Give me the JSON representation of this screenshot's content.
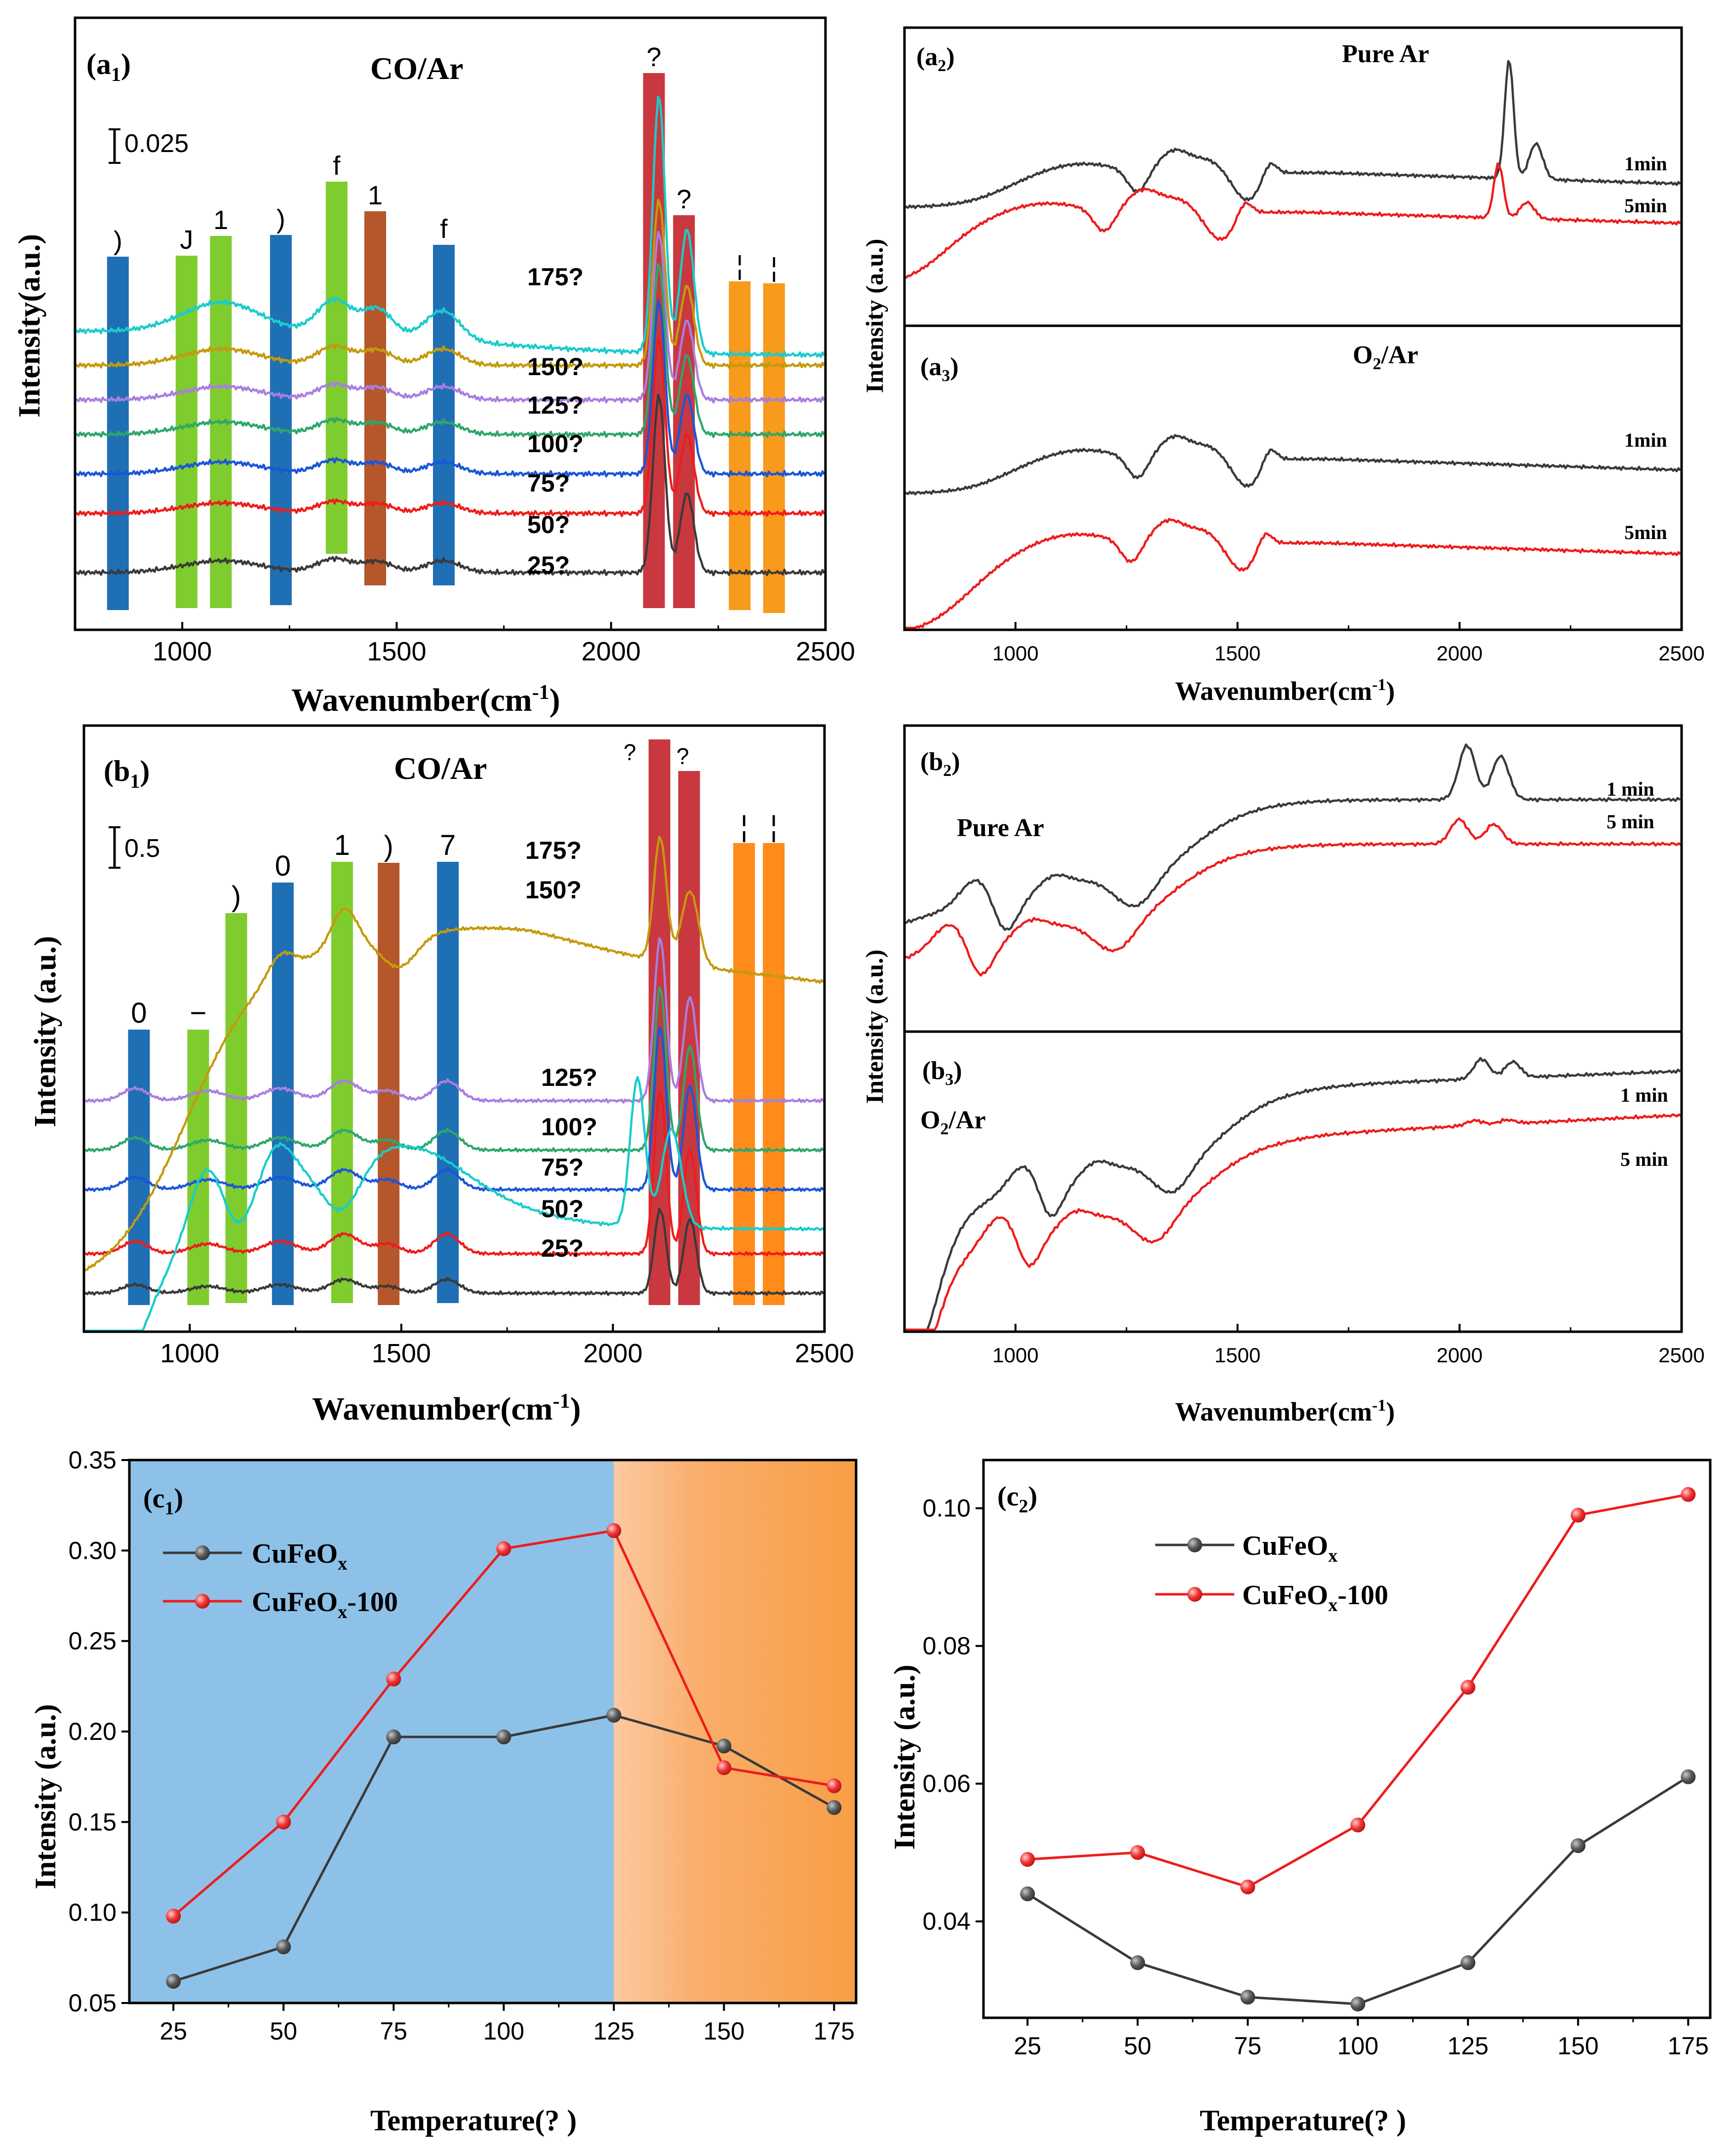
{
  "figure": {
    "a1": {
      "panel_label": "(a",
      "panel_sub": "1",
      "title": "CO/Ar",
      "scale_bar": "0.025",
      "xlabel": "Wavenumber(cm",
      "xlabel_sup": "-1",
      "xlabel_close": ")",
      "ylabel": "Intensity(a.u.)",
      "xticks": [
        "1000",
        "1500",
        "2000",
        "2500"
      ],
      "curve_labels": [
        "175?",
        "150?",
        "125?",
        "100?",
        "75?",
        "50?",
        "25?"
      ],
      "band_marks": [
        ")",
        "J",
        "1",
        ")",
        "f",
        "1",
        "f",
        "?",
        "?",
        "¦",
        "¦"
      ]
    },
    "a2": {
      "panel_label": "(a",
      "panel_sub": "2",
      "title": "Pure Ar",
      "labels": [
        "1min",
        "5min"
      ]
    },
    "a3": {
      "panel_label": "(a",
      "panel_sub": "3",
      "title_a": "O",
      "title_sub": "2",
      "title_b": "/Ar",
      "labels": [
        "1min",
        "5min"
      ]
    },
    "a_right": {
      "ylabel": "Intensity (a.u.)",
      "xlabel": "Wavenumber(cm",
      "xlabel_sup": "-1",
      "xlabel_close": ")",
      "xticks": [
        "1000",
        "1500",
        "2000",
        "2500"
      ]
    },
    "b1": {
      "panel_label": "(b",
      "panel_sub": "1",
      "title": "CO/Ar",
      "scale_bar": "0.5",
      "xlabel": "Wavenumber(cm",
      "xlabel_sup": "-1",
      "xlabel_close": ")",
      "ylabel": "Intensity (a.u.)",
      "xticks": [
        "1000",
        "1500",
        "2000",
        "2500"
      ],
      "curve_labels": [
        "175?",
        "150?",
        "125?",
        "100?",
        "75?",
        "50?",
        "25?"
      ],
      "band_marks": [
        "0",
        "−",
        ")",
        "0",
        "1",
        ")",
        "7",
        "?",
        "?",
        "¦",
        "¦"
      ]
    },
    "b2": {
      "panel_label": "(b",
      "panel_sub": "2",
      "title": "Pure Ar",
      "labels": [
        "1 min",
        "5 min"
      ]
    },
    "b3": {
      "panel_label": "(b",
      "panel_sub": "3",
      "title_a": "O",
      "title_sub": "2",
      "title_b": "/Ar",
      "labels": [
        "1 min",
        "5 min"
      ]
    },
    "b_right": {
      "ylabel": "Intensity (a.u.)",
      "xlabel": "Wavenumber(cm",
      "xlabel_sup": "-1",
      "xlabel_close": ")",
      "xticks": [
        "1000",
        "1500",
        "2000",
        "2500"
      ]
    },
    "c1": {
      "panel_label": "(c",
      "panel_sub": "1",
      "xlabel": "Temperature(?  )",
      "ylabel": "Intensity (a.u.)",
      "legend_prefix": "CuFeO",
      "legend_sub": "x",
      "legend_suffix_2": "-100"
    },
    "c2": {
      "panel_label": "(c",
      "panel_sub": "2",
      "xlabel": "Temperature(?  )",
      "ylabel": "Intensity (a.u.)",
      "legend_prefix": "CuFeO",
      "legend_sub": "x",
      "legend_suffix_2": "-100"
    }
  },
  "colors": {
    "black": "#3a3a3a",
    "red": "#ee1c1c",
    "cyan": "#19cccc",
    "gold": "#c49a0c",
    "purple": "#a97ee0",
    "green": "#2fa66b",
    "blue": "#1a56d8",
    "band_blue": "#1f6fb5",
    "band_green": "#7fcc2e",
    "band_brown": "#b5572a",
    "band_red": "#c9383e",
    "band_orange": "#f89a1c",
    "band_orange2": "#ff8c1a",
    "bg_blue": "#8dc1e8",
    "bg_orange": "#f9a24a"
  },
  "chart_data": [
    {
      "id": "a1",
      "type": "line",
      "title": "CO/Ar",
      "xlabel": "Wavenumber(cm-1)",
      "ylabel": "Intensity(a.u.)",
      "xlim": [
        750,
        2500
      ],
      "series": [
        "175?",
        "150?",
        "125?",
        "100?",
        "75?",
        "50?",
        "25?"
      ],
      "band_positions": [
        850,
        1010,
        1090,
        1230,
        1360,
        1450,
        1610,
        2100,
        2170,
        2300,
        2380
      ]
    },
    {
      "id": "a2",
      "type": "line",
      "title": "Pure Ar",
      "xlabel": "Wavenumber(cm-1)",
      "ylabel": "Intensity (a.u.)",
      "xlim": [
        750,
        2500
      ],
      "series": [
        "1min",
        "5min"
      ]
    },
    {
      "id": "a3",
      "type": "line",
      "title": "O2/Ar",
      "xlabel": "Wavenumber(cm-1)",
      "ylabel": "Intensity (a.u.)",
      "xlim": [
        750,
        2500
      ],
      "series": [
        "1min",
        "5min"
      ]
    },
    {
      "id": "b1",
      "type": "line",
      "title": "CO/Ar",
      "xlabel": "Wavenumber(cm-1)",
      "ylabel": "Intensity (a.u.)",
      "xlim": [
        750,
        2500
      ],
      "series": [
        "175?",
        "150?",
        "125?",
        "100?",
        "75?",
        "50?",
        "25?"
      ],
      "band_positions": [
        880,
        1020,
        1110,
        1220,
        1360,
        1470,
        1610,
        2110,
        2180,
        2310,
        2380
      ]
    },
    {
      "id": "b2",
      "type": "line",
      "title": "Pure Ar",
      "xlabel": "Wavenumber(cm-1)",
      "ylabel": "Intensity (a.u.)",
      "xlim": [
        750,
        2500
      ],
      "series": [
        "1 min",
        "5 min"
      ]
    },
    {
      "id": "b3",
      "type": "line",
      "title": "O2/Ar",
      "xlabel": "Wavenumber(cm-1)",
      "ylabel": "Intensity (a.u.)",
      "xlim": [
        750,
        2500
      ],
      "series": [
        "1 min",
        "5 min"
      ]
    },
    {
      "id": "c1",
      "type": "line",
      "xlabel": "Temperature(?  )",
      "ylabel": "Intensity (a.u.)",
      "x": [
        25,
        50,
        75,
        100,
        125,
        150,
        175
      ],
      "xlim": [
        15,
        180
      ],
      "ylim": [
        0.05,
        0.35
      ],
      "xticks": [
        25,
        50,
        75,
        100,
        125,
        150,
        175
      ],
      "yticks": [
        0.05,
        0.1,
        0.15,
        0.2,
        0.25,
        0.3,
        0.35
      ],
      "ytick_labels": [
        "0.05",
        "0.10",
        "0.15",
        "0.20",
        "0.25",
        "0.30",
        "0.35"
      ],
      "background_split": 125,
      "series": [
        {
          "name": "CuFeOx",
          "values": [
            0.062,
            0.081,
            0.197,
            0.197,
            0.209,
            0.192,
            0.158
          ]
        },
        {
          "name": "CuFeOx-100",
          "values": [
            0.098,
            0.15,
            0.229,
            0.301,
            0.311,
            0.18,
            0.17
          ]
        }
      ]
    },
    {
      "id": "c2",
      "type": "line",
      "xlabel": "Temperature(?  )",
      "ylabel": "Intensity (a.u.)",
      "x": [
        25,
        50,
        75,
        100,
        125,
        150,
        175
      ],
      "xlim": [
        15,
        180
      ],
      "ylim": [
        0.026,
        0.107
      ],
      "xticks": [
        25,
        50,
        75,
        100,
        125,
        150,
        175
      ],
      "yticks": [
        0.04,
        0.06,
        0.08,
        0.1
      ],
      "ytick_labels": [
        "0.04",
        "0.06",
        "0.08",
        "0.10"
      ],
      "series": [
        {
          "name": "CuFeOx",
          "values": [
            0.044,
            0.034,
            0.029,
            0.028,
            0.034,
            0.051,
            0.061
          ]
        },
        {
          "name": "CuFeOx-100",
          "values": [
            0.049,
            0.05,
            0.045,
            0.054,
            0.074,
            0.099,
            0.102
          ]
        }
      ]
    }
  ]
}
